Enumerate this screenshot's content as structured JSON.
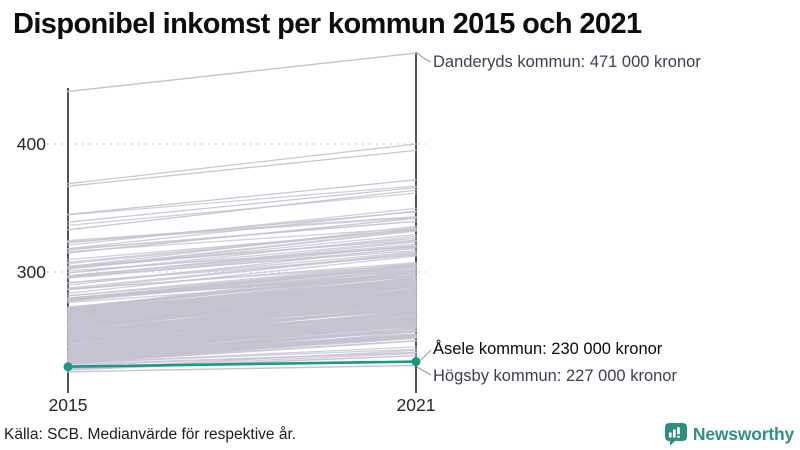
{
  "header": {
    "title": "Disponibel inkomst per kommun 2015 och 2021"
  },
  "chart_data": {
    "type": "line",
    "variant": "slopegraph",
    "title": "Disponibel inkomst per kommun 2015 och 2021",
    "unit": "tusen kronor (disponibel inkomst, medianvärde)",
    "xtick_labels": [
      "2015",
      "2021"
    ],
    "ytick_labels": [
      "400",
      "300"
    ],
    "yticks": [
      400,
      300
    ],
    "ylim": [
      215,
      480
    ],
    "grid": "horizontal dotted gridlines at 300 and 400",
    "legend": "none",
    "series": [
      {
        "name": "Danderyds kommun",
        "values": [
          441,
          471
        ],
        "highlighted": false,
        "label": "Danderyds kommun: 471 000 kronor"
      },
      {
        "name": "Åsele kommun",
        "values": [
          226,
          230
        ],
        "highlighted": true,
        "label": "Åsele kommun: 230 000 kronor"
      },
      {
        "name": "Högsby kommun",
        "values": [
          222,
          227
        ],
        "highlighted": false,
        "label": "Högsby kommun: 227 000 kronor"
      }
    ],
    "background_lines": {
      "count": 287,
      "description": "Unlabeled light-grey slope lines, one per remaining Swedish municipality; values estimated from the pixel band: 2015 roughly 222-369 thousand kronor (dense 228-272), 2021 roughly 232-400 thousand kronor (dense 245-295).",
      "explicit_pairs": [
        [
          369,
          400
        ],
        [
          367,
          395
        ],
        [
          345,
          372
        ],
        [
          339,
          366
        ],
        [
          333,
          364
        ],
        [
          323,
          347
        ],
        [
          315,
          342
        ]
      ],
      "components": [
        {
          "n": 8,
          "v2015_min": 222,
          "v2015_spread": 8,
          "pow": 1,
          "rise_min": 6,
          "rise_spread": 10,
          "rise_slope": 0
        },
        {
          "n": 202,
          "v2015_min": 228,
          "v2015_spread": 44,
          "pow": 1,
          "rise_min": 16,
          "rise_spread": 12,
          "rise_slope": 0.1
        },
        {
          "n": 56,
          "v2015_min": 265,
          "v2015_spread": 40,
          "pow": 1.5,
          "rise_min": 16,
          "rise_spread": 12,
          "rise_slope": 0.1
        },
        {
          "n": 14,
          "v2015_min": 300,
          "v2015_spread": 45,
          "pow": 2,
          "rise_min": 16,
          "rise_spread": 12,
          "rise_slope": 0.1
        }
      ]
    },
    "colors": {
      "highlight_teal": "#18998a",
      "line_grey": "#c6c3d1",
      "axis_black": "#19191c",
      "gridline_grey": "#c9c8d0",
      "leader_grey": "#9b9aa6",
      "annotation_grey": "#3e3e50",
      "annotation_black": "#0a0a0a"
    }
  },
  "footer": {
    "source": "Källa: SCB. Medianvärde för respektive år.",
    "brand": "Newsworthy"
  }
}
